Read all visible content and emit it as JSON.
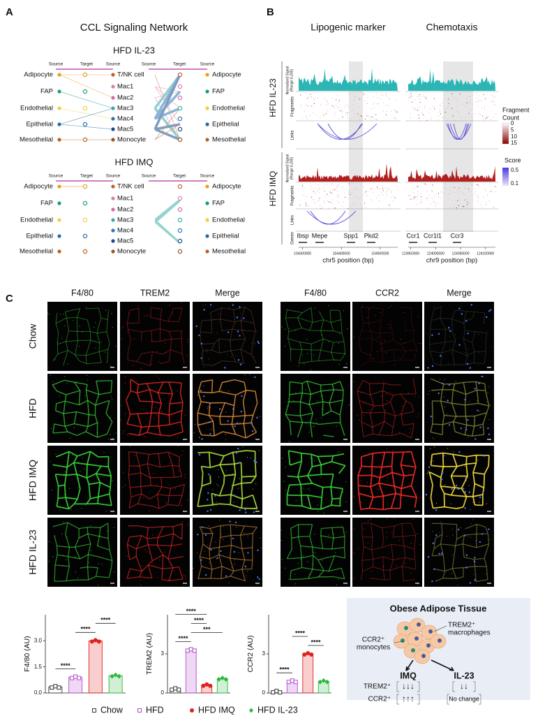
{
  "panel_a": {
    "label": "A",
    "title": "CCL Signaling Network",
    "networks": [
      {
        "title": "HFD IL-23",
        "headers": [
          "Source",
          "Target",
          "Source",
          "Source",
          "Target",
          "Source"
        ],
        "left_cells": [
          "Adipocyte",
          "FAP",
          "Endothelial",
          "Epithelial",
          "Mesothelial"
        ],
        "middle_cells": [
          "T/NK cell",
          "Mac1",
          "Mac2",
          "Mac3",
          "Mac4",
          "Mac5",
          "Monocyte"
        ],
        "right_cells": [
          "Adipocyte",
          "FAP",
          "Endothelial",
          "Epithelial",
          "Mesothelial"
        ]
      },
      {
        "title": "HFD IMQ",
        "headers": [
          "Source",
          "Target",
          "Source",
          "Source",
          "Target",
          "Source"
        ],
        "left_cells": [
          "Adipocyte",
          "FAP",
          "Endothelial",
          "Epithelial",
          "Mesothelial"
        ],
        "middle_cells": [
          "T/NK cell",
          "Mac1",
          "Mac2",
          "Mac3",
          "Mac4",
          "Mac5",
          "Monocyte"
        ],
        "right_cells": [
          "Adipocyte",
          "FAP",
          "Endothelial",
          "Epithelial",
          "Mesothelial"
        ]
      }
    ]
  },
  "panel_b": {
    "label": "B",
    "conditions": [
      "HFD IL-23",
      "HFD IMQ"
    ],
    "signal_label": [
      "Normalized Signal",
      "(Range 0-200)"
    ],
    "track_labels": [
      "Fragments",
      "Links",
      "Genes"
    ],
    "columns": [
      {
        "title": "Lipogenic marker",
        "genes": [
          "Ibsp",
          "Mepe",
          "Spp1",
          "Pkd2"
        ],
        "highlight_gene": "Spp1",
        "xlim": [
          104290000,
          104545000
        ],
        "xticks": [
          104300000,
          104400000,
          104500000
        ],
        "xlabel": "chr5 position (bp)"
      },
      {
        "title": "Chemotaxis",
        "genes": [
          "Ccr1",
          "Ccr1l1",
          "Ccr3"
        ],
        "highlight_gene": "Ccr3",
        "xlim": [
          123945000,
          124120000
        ],
        "xticks": [
          123950000,
          124000000,
          124050000,
          124100000
        ],
        "xlabel": "chr9 position (bp)"
      }
    ],
    "fragment_legend": {
      "title": [
        "Fragment",
        "Count"
      ],
      "ticks": [
        0,
        5,
        10,
        15
      ]
    },
    "score_legend": {
      "title": "Score",
      "ticks": [
        0.5,
        0.1
      ]
    }
  },
  "panel_c": {
    "label": "C",
    "groups": [
      {
        "channels": [
          "F4/80",
          "TREM2",
          "Merge"
        ]
      },
      {
        "channels": [
          "F4/80",
          "CCR2",
          "Merge"
        ]
      }
    ],
    "conditions": [
      "Chow",
      "HFD",
      "HFD IMQ",
      "HFD IL-23"
    ]
  },
  "chart_data": [
    {
      "type": "bar",
      "ylabel": "F4/80 (AU)",
      "categories": [
        "Chow",
        "HFD",
        "HFD IMQ",
        "HFD IL-23"
      ],
      "values": [
        0.35,
        0.9,
        3.0,
        1.0
      ],
      "colors": [
        "#333333",
        "#b24ccc",
        "#e02020",
        "#27b83a"
      ],
      "markers": [
        "square-open",
        "square-open",
        "circle",
        "diamond"
      ],
      "ylim": [
        0,
        4.5
      ],
      "yticks": [
        {
          "value": 0,
          "label": "0.0"
        },
        {
          "value": 1.5,
          "label": "1.5"
        },
        {
          "value": 3,
          "label": "3.0"
        }
      ],
      "annotations": [
        {
          "text": "****",
          "between": [
            "Chow",
            "HFD"
          ]
        },
        {
          "text": "****",
          "between": [
            "HFD",
            "HFD IMQ"
          ]
        },
        {
          "text": "****",
          "between": [
            "HFD IMQ",
            "HFD IL-23"
          ]
        }
      ]
    },
    {
      "type": "bar",
      "ylabel": "TREM2 (AU)",
      "categories": [
        "Chow",
        "HFD",
        "HFD IMQ",
        "HFD IL-23"
      ],
      "values": [
        0.3,
        3.3,
        0.6,
        1.1
      ],
      "colors": [
        "#333333",
        "#b24ccc",
        "#e02020",
        "#27b83a"
      ],
      "markers": [
        "square-open",
        "square-open",
        "circle",
        "diamond"
      ],
      "ylim": [
        0,
        6
      ],
      "yticks": [
        0,
        3
      ],
      "annotations": [
        {
          "text": "****",
          "between": [
            "Chow",
            "HFD"
          ]
        },
        {
          "text": "***",
          "between": [
            "HFD",
            "HFD IL-23"
          ]
        },
        {
          "text": "****",
          "between": [
            "HFD",
            "HFD IMQ"
          ]
        },
        {
          "text": "****",
          "between": [
            "Chow",
            "HFD IMQ"
          ]
        }
      ]
    },
    {
      "type": "bar",
      "ylabel": "CCR2 (AU)",
      "categories": [
        "Chow",
        "HFD",
        "HFD IMQ",
        "HFD IL-23"
      ],
      "values": [
        0.1,
        0.9,
        3.0,
        0.9
      ],
      "colors": [
        "#333333",
        "#b24ccc",
        "#e02020",
        "#27b83a"
      ],
      "markers": [
        "square-open",
        "square-open",
        "circle",
        "diamond"
      ],
      "ylim": [
        0,
        6
      ],
      "yticks": [
        0,
        3
      ],
      "annotations": [
        {
          "text": "****",
          "between": [
            "Chow",
            "HFD"
          ]
        },
        {
          "text": "****",
          "between": [
            "HFD IMQ",
            "HFD IL-23"
          ]
        },
        {
          "text": "****",
          "between": [
            "HFD",
            "HFD IMQ"
          ]
        }
      ]
    }
  ],
  "schematic": {
    "title": "Obese Adipose Tissue",
    "macrophage_label": [
      "TREM2⁺",
      "macrophages"
    ],
    "monocyte_label": [
      "CCR2⁺",
      "monocytes"
    ],
    "treatments": [
      "IMQ",
      "IL-23"
    ],
    "markers": [
      "TREM2⁺",
      "CCR2⁺"
    ],
    "effects": [
      [
        "↓↓↓",
        "↓↓"
      ],
      [
        "↑↑↑",
        "No change"
      ]
    ]
  }
}
